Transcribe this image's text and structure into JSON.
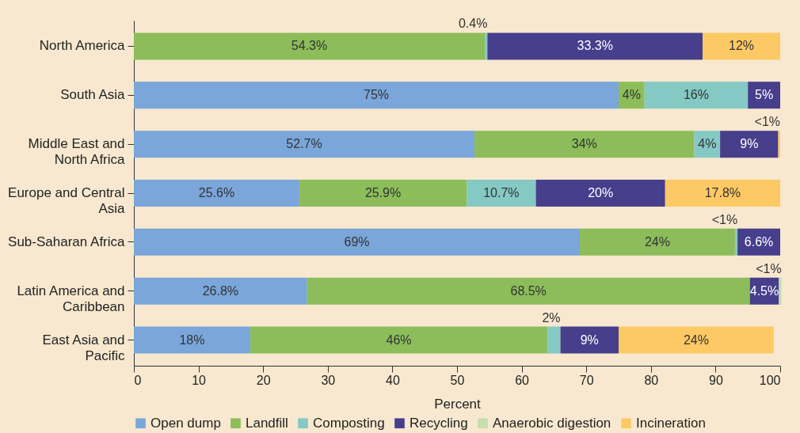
{
  "chart_data": {
    "type": "bar",
    "orientation": "horizontal",
    "stacked": true,
    "xlabel": "Percent",
    "xlim": [
      0,
      100
    ],
    "xticks": [
      0,
      10,
      20,
      30,
      40,
      50,
      60,
      70,
      80,
      90,
      100
    ],
    "grid": false,
    "legend": "bottom",
    "categories": [
      "North America",
      "South Asia",
      "Middle East and North Africa",
      "Europe and Central Asia",
      "Sub-Saharan Africa",
      "Latin America and Caribbean",
      "East Asia and Pacific"
    ],
    "series": [
      {
        "name": "Open dump",
        "color": "#7aa6da",
        "values": [
          null,
          75,
          52.7,
          25.6,
          69,
          26.8,
          18
        ],
        "value_labels": [
          null,
          "75%",
          "52.7%",
          "25.6%",
          "69%",
          "26.8%",
          "18%"
        ]
      },
      {
        "name": "Landfill",
        "color": "#8cbd5a",
        "values": [
          54.3,
          4,
          34,
          25.9,
          24,
          68.5,
          46
        ],
        "value_labels": [
          "54.3%",
          "4%",
          "34%",
          "25.9%",
          "24%",
          "68.5%",
          "46%"
        ]
      },
      {
        "name": "Composting",
        "color": "#84c9c4",
        "values": [
          0.4,
          16,
          4,
          10.7,
          0.4,
          null,
          2
        ],
        "value_labels": [
          "0.4%",
          "16%",
          "4%",
          "10.7%",
          "<1%",
          null,
          "2%"
        ]
      },
      {
        "name": "Recycling",
        "color": "#473e8c",
        "values": [
          33.3,
          5,
          9,
          20,
          6.6,
          4.5,
          9
        ],
        "value_labels": [
          "33.3%",
          "5%",
          "9%",
          "20%",
          "6.6%",
          "4.5%",
          "9%"
        ]
      },
      {
        "name": "Anaerobic digestion",
        "color": "#c5dfb0",
        "values": [
          null,
          null,
          null,
          null,
          null,
          0.4,
          null
        ],
        "value_labels": [
          null,
          null,
          null,
          null,
          null,
          "<1%",
          null
        ]
      },
      {
        "name": "Incineration",
        "color": "#fdc964",
        "values": [
          12,
          null,
          0.3,
          17.8,
          null,
          null,
          24
        ],
        "value_labels": [
          "12%",
          null,
          "<1%",
          "17.8%",
          null,
          null,
          "24%"
        ]
      }
    ]
  }
}
